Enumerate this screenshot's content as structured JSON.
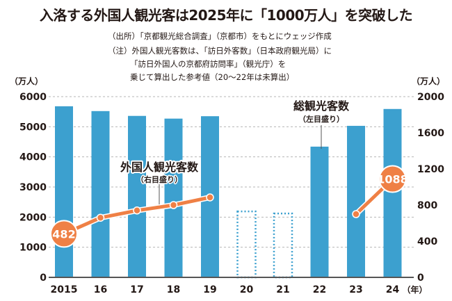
{
  "title": "入洛する外国人観光客は2025年に「1000万人」を突破した",
  "notes": {
    "source": "（出所）「京都観光総合調査」（京都市）をもとにウェッジ作成",
    "note_line1": "（注）外国人観光客数は、「訪日外客数」（日本政府観光局）に",
    "note_line2": "「訪日外国人の京都府訪問率」（観光庁）を",
    "note_line3": "乗じて算出した参考値（20～22年は未算出）"
  },
  "colors": {
    "bar": "#3ca0cf",
    "line": "#ef8045",
    "grid": "#b5b5b5",
    "axis": "#555555"
  },
  "chart_data": {
    "type": "bar",
    "title": "入洛する外国人観光客は2025年に「1000万人」を突破した",
    "categories": [
      "2015",
      "16",
      "17",
      "18",
      "19",
      "20",
      "21",
      "22",
      "23",
      "24"
    ],
    "x_unit": "（年）",
    "left_axis": {
      "unit": "（万人）",
      "ylim": [
        0,
        6000
      ],
      "ticks": [
        "0",
        "1000",
        "2000",
        "3000",
        "4000",
        "5000",
        "6000"
      ]
    },
    "right_axis": {
      "unit": "（万人）",
      "ylim": [
        0,
        2000
      ],
      "ticks": [
        "0",
        "400",
        "800",
        "1200",
        "1600",
        "2000"
      ]
    },
    "grid": true,
    "series": [
      {
        "name": "総観光客数",
        "axis_note": "（左目盛り）",
        "type": "bar",
        "axis": "left",
        "values": [
          5680,
          5520,
          5360,
          5270,
          5350,
          2190,
          2120,
          4340,
          5030,
          5590
        ],
        "estimated": [
          false,
          false,
          false,
          false,
          false,
          true,
          true,
          false,
          false,
          false
        ]
      },
      {
        "name": "外国人観光客数",
        "axis_note": "（右目盛り）",
        "type": "line",
        "axis": "right",
        "values": [
          482,
          660,
          740,
          800,
          885,
          null,
          null,
          null,
          700,
          1088
        ],
        "labels": {
          "0": "482",
          "9": "1088"
        }
      }
    ]
  }
}
